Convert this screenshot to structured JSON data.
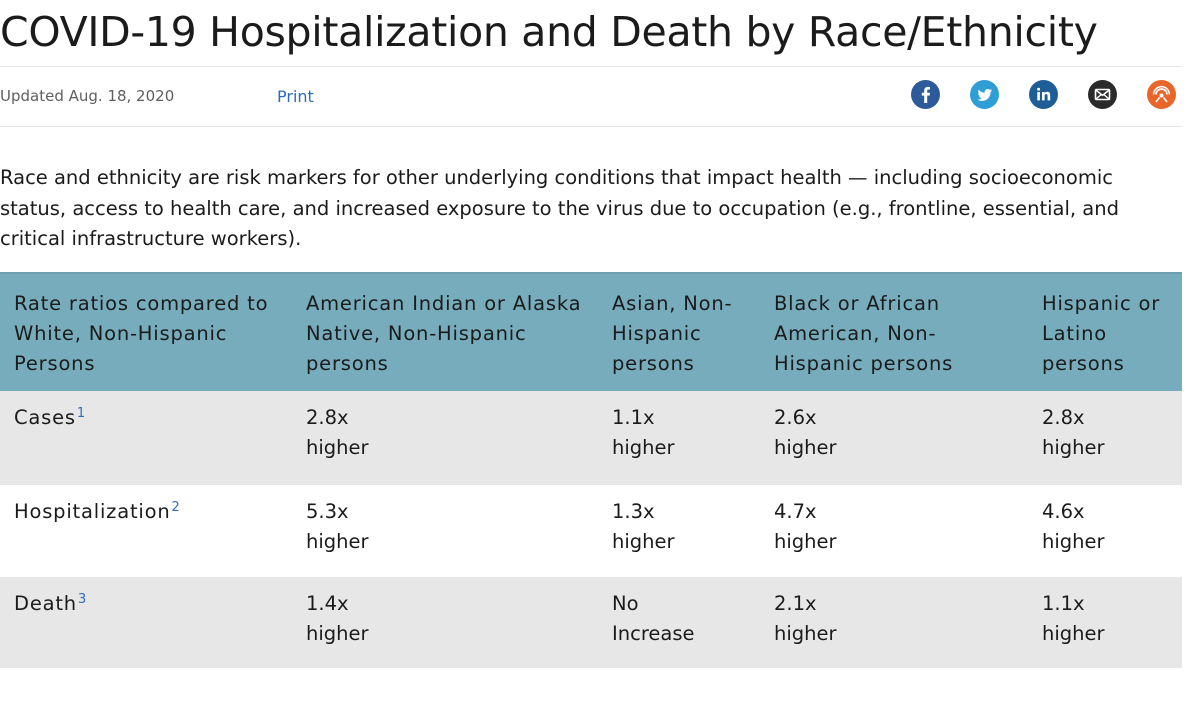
{
  "page": {
    "title": "COVID-19 Hospitalization and Death by Race/Ethnicity",
    "updated": "Updated Aug. 18, 2020",
    "print_label": "Print"
  },
  "share": {
    "icons": [
      "facebook-icon",
      "twitter-icon",
      "linkedin-icon",
      "email-icon",
      "syndicate-icon"
    ],
    "colors": {
      "facebook": "#2c5a9a",
      "twitter": "#2f9ed7",
      "linkedin": "#1d5e97",
      "email": "#2a2a2a",
      "syndicate": "#e8662a"
    }
  },
  "intro": "Race and ethnicity are risk markers for other underlying conditions that impact health — including socioeconomic status, access to health care, and increased exposure to the virus due to occupation (e.g., frontline, essential, and critical infrastructure workers).",
  "table": {
    "colors": {
      "header_bg": "#77acbc",
      "stripe_bg": "#e7e7e7",
      "footnote_link": "#2a6ebb"
    },
    "headers": [
      "Rate ratios compared to White, Non-Hispanic Persons",
      "American Indian or Alaska Native, Non-Hispanic persons",
      "Asian, Non-Hispanic persons",
      "Black or African American, Non-Hispanic persons",
      "Hispanic or Latino persons"
    ],
    "rows": [
      {
        "label": "Cases",
        "footnote": "1",
        "values": [
          [
            "2.8x",
            "higher"
          ],
          [
            "1.1x",
            "higher"
          ],
          [
            "2.6x",
            "higher"
          ],
          [
            "2.8x",
            "higher"
          ]
        ]
      },
      {
        "label": "Hospitalization",
        "footnote": "2",
        "values": [
          [
            "5.3x",
            "higher"
          ],
          [
            "1.3x",
            "higher"
          ],
          [
            "4.7x",
            "higher"
          ],
          [
            "4.6x",
            "higher"
          ]
        ]
      },
      {
        "label": "Death",
        "footnote": "3",
        "values": [
          [
            "1.4x",
            "higher"
          ],
          [
            "No",
            "Increase"
          ],
          [
            "2.1x",
            "higher"
          ],
          [
            "1.1x",
            "higher"
          ]
        ]
      }
    ]
  }
}
